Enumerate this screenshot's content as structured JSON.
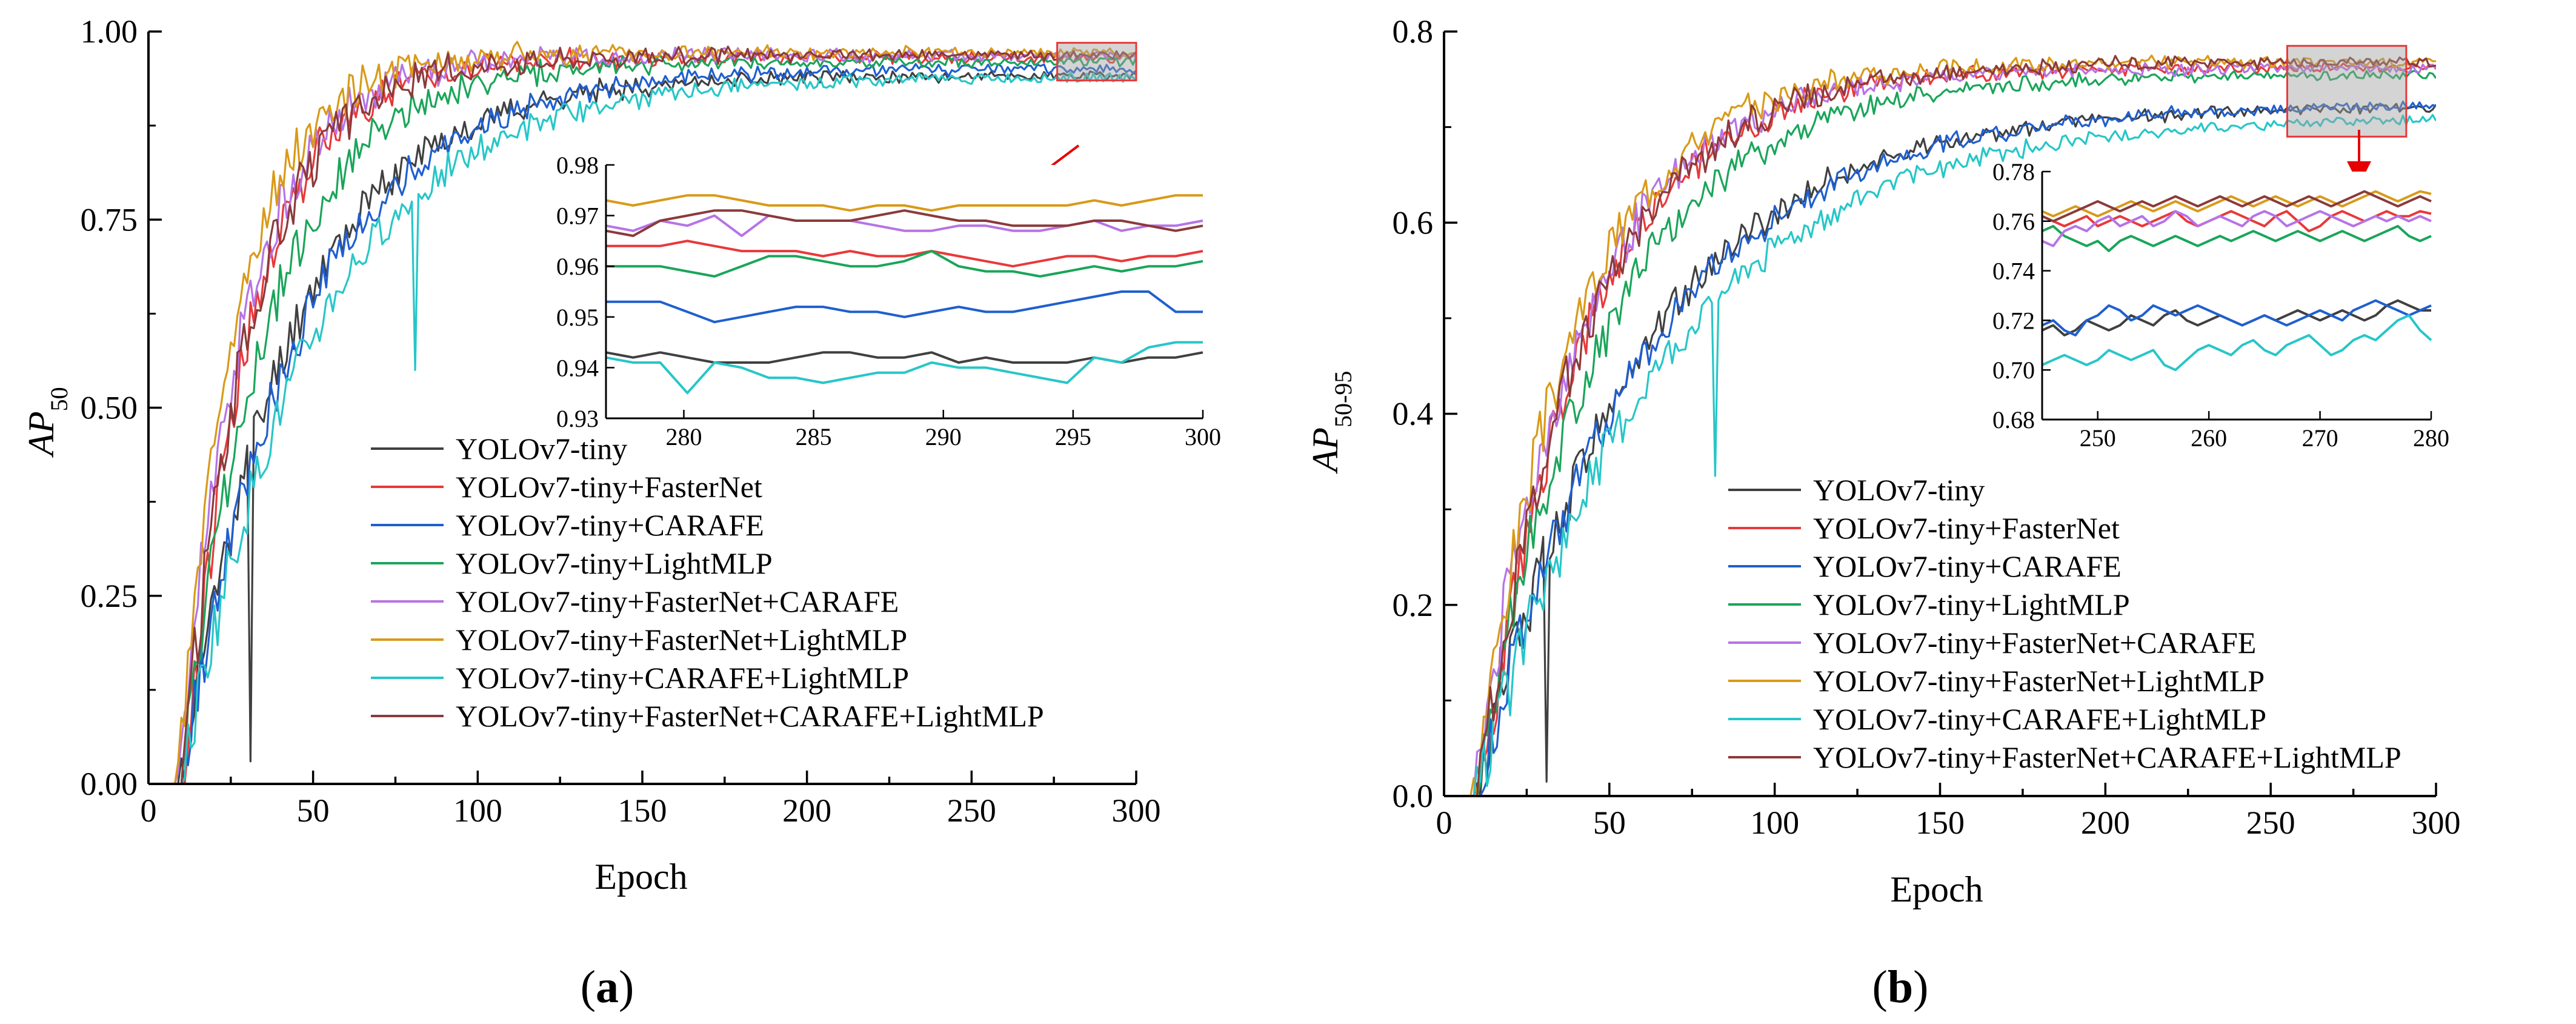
{
  "chart_data": [
    {
      "id": "a",
      "type": "line",
      "panel_label_prefix": "(",
      "panel_label": "a",
      "panel_label_suffix": ")",
      "xlabel": "Epoch",
      "ylabel": "AP",
      "ylabel_sub": "50",
      "xlim": [
        0,
        300
      ],
      "ylim": [
        0,
        1
      ],
      "xticks": [
        0,
        50,
        100,
        150,
        200,
        250,
        300
      ],
      "yticks": [
        0.0,
        0.25,
        0.5,
        0.75,
        1.0
      ],
      "ytick_labels": [
        "0.00",
        "0.25",
        "0.50",
        "0.75",
        "1.00"
      ],
      "legend_position": "lower-right",
      "zoom_region": {
        "x": [
          276,
          300
        ],
        "y": [
          0.935,
          0.985
        ]
      },
      "inset": {
        "xlim": [
          277,
          300
        ],
        "ylim": [
          0.93,
          0.98
        ],
        "xticks": [
          280,
          285,
          290,
          295,
          300
        ],
        "yticks": [
          0.93,
          0.94,
          0.95,
          0.96,
          0.97,
          0.98
        ],
        "ytick_labels": [
          "0.93",
          "0.94",
          "0.95",
          "0.96",
          "0.97",
          "0.98"
        ]
      },
      "series": [
        {
          "name": "YOLOv7-tiny",
          "color": "#404040",
          "final": 0.941,
          "start": 10,
          "tau": 33,
          "seed": 11,
          "dip": [
            31,
            0.03
          ],
          "inset_values": [
            0.943,
            0.942,
            0.943,
            0.942,
            0.941,
            0.941,
            0.941,
            0.942,
            0.943,
            0.943,
            0.942,
            0.942,
            0.943,
            0.941,
            0.942,
            0.941,
            0.941,
            0.941,
            0.942,
            0.941,
            0.942,
            0.942,
            0.943
          ]
        },
        {
          "name": "YOLOv7-tiny+FasterNet",
          "color": "#e8393a",
          "final": 0.965,
          "start": 11,
          "tau": 20,
          "seed": 22,
          "inset_values": [
            0.964,
            0.964,
            0.964,
            0.965,
            0.964,
            0.963,
            0.963,
            0.963,
            0.962,
            0.963,
            0.962,
            0.962,
            0.963,
            0.962,
            0.961,
            0.96,
            0.961,
            0.962,
            0.962,
            0.961,
            0.962,
            0.962,
            0.963
          ]
        },
        {
          "name": "YOLOv7-tiny+CARAFE",
          "color": "#1f5fcf",
          "final": 0.951,
          "start": 10,
          "tau": 36,
          "seed": 33,
          "inset_values": [
            0.953,
            0.953,
            0.953,
            0.951,
            0.949,
            0.95,
            0.951,
            0.952,
            0.952,
            0.951,
            0.951,
            0.95,
            0.951,
            0.952,
            0.951,
            0.951,
            0.952,
            0.953,
            0.954,
            0.955,
            0.955,
            0.951,
            0.951
          ]
        },
        {
          "name": "YOLOv7-tiny+LightMLP",
          "color": "#1aa55a",
          "final": 0.96,
          "start": 10,
          "tau": 26,
          "seed": 44,
          "inset_values": [
            0.96,
            0.96,
            0.96,
            0.959,
            0.958,
            0.96,
            0.962,
            0.962,
            0.961,
            0.96,
            0.96,
            0.961,
            0.963,
            0.96,
            0.959,
            0.959,
            0.958,
            0.959,
            0.96,
            0.959,
            0.96,
            0.96,
            0.961
          ]
        },
        {
          "name": "YOLOv7-tiny+FasterNet+CARAFE",
          "color": "#b673e6",
          "final": 0.968,
          "start": 9,
          "tau": 20,
          "seed": 55,
          "inset_values": [
            0.968,
            0.967,
            0.969,
            0.968,
            0.97,
            0.966,
            0.97,
            0.969,
            0.969,
            0.969,
            0.968,
            0.967,
            0.967,
            0.968,
            0.968,
            0.967,
            0.967,
            0.968,
            0.969,
            0.967,
            0.968,
            0.968,
            0.969
          ]
        },
        {
          "name": "YOLOv7-tiny+FasterNet+LightMLP",
          "color": "#d99a18",
          "final": 0.972,
          "start": 9,
          "tau": 18,
          "seed": 66,
          "inset_values": [
            0.973,
            0.972,
            0.973,
            0.974,
            0.974,
            0.973,
            0.972,
            0.972,
            0.972,
            0.971,
            0.972,
            0.972,
            0.971,
            0.972,
            0.972,
            0.972,
            0.972,
            0.972,
            0.973,
            0.972,
            0.973,
            0.974,
            0.974
          ]
        },
        {
          "name": "YOLOv7-tiny+CARAFE+LightMLP",
          "color": "#27c6c8",
          "final": 0.94,
          "start": 10,
          "tau": 40,
          "seed": 77,
          "dip": [
            81,
            0.55
          ],
          "inset_values": [
            0.942,
            0.941,
            0.941,
            0.935,
            0.941,
            0.94,
            0.938,
            0.938,
            0.937,
            0.938,
            0.939,
            0.939,
            0.941,
            0.94,
            0.94,
            0.939,
            0.938,
            0.937,
            0.942,
            0.941,
            0.944,
            0.945,
            0.945
          ]
        },
        {
          "name": "YOLOv7-tiny+FasterNet+CARAFE+LightMLP",
          "color": "#8b3a3a",
          "final": 0.968,
          "start": 10,
          "tau": 21,
          "seed": 88,
          "inset_values": [
            0.967,
            0.966,
            0.969,
            0.97,
            0.971,
            0.971,
            0.97,
            0.969,
            0.969,
            0.969,
            0.97,
            0.971,
            0.97,
            0.969,
            0.969,
            0.968,
            0.968,
            0.968,
            0.969,
            0.969,
            0.968,
            0.967,
            0.968
          ]
        }
      ]
    },
    {
      "id": "b",
      "type": "line",
      "panel_label_prefix": "(",
      "panel_label": "b",
      "panel_label_suffix": ")",
      "xlabel": "Epoch",
      "ylabel": "AP",
      "ylabel_sub": "50-95",
      "xlim": [
        0,
        300
      ],
      "ylim": [
        0,
        0.8
      ],
      "xticks": [
        0,
        50,
        100,
        150,
        200,
        250,
        300
      ],
      "yticks": [
        0.0,
        0.2,
        0.4,
        0.6,
        0.8
      ],
      "ytick_labels": [
        "0.0",
        "0.2",
        "0.4",
        "0.6",
        "0.8"
      ],
      "legend_position": "lower-right",
      "zoom_region": {
        "x": [
          255,
          291
        ],
        "y": [
          0.69,
          0.785
        ]
      },
      "inset": {
        "xlim": [
          245,
          280
        ],
        "ylim": [
          0.68,
          0.78
        ],
        "xticks": [
          250,
          260,
          270,
          280
        ],
        "yticks": [
          0.68,
          0.7,
          0.72,
          0.74,
          0.76,
          0.78
        ],
        "ytick_labels": [
          "0.68",
          "0.70",
          "0.72",
          "0.74",
          "0.76",
          "0.78"
        ]
      },
      "series": [
        {
          "name": "YOLOv7-tiny",
          "color": "#404040",
          "final": 0.722,
          "start": 10,
          "tau": 48,
          "seed": 12,
          "dip": [
            31,
            0.015
          ],
          "inset_values": [
            0.716,
            0.718,
            0.714,
            0.716,
            0.72,
            0.718,
            0.716,
            0.718,
            0.722,
            0.72,
            0.718,
            0.722,
            0.724,
            0.72,
            0.718,
            0.72,
            0.722,
            0.72,
            0.718,
            0.72,
            0.722,
            0.72,
            0.722,
            0.724,
            0.722,
            0.72,
            0.722,
            0.724,
            0.722,
            0.72,
            0.722,
            0.726,
            0.728,
            0.726,
            0.724,
            0.724
          ]
        },
        {
          "name": "YOLOv7-tiny+FasterNet",
          "color": "#e8393a",
          "final": 0.763,
          "start": 11,
          "tau": 32,
          "seed": 23,
          "inset_values": [
            0.762,
            0.76,
            0.758,
            0.76,
            0.762,
            0.758,
            0.76,
            0.762,
            0.76,
            0.758,
            0.76,
            0.762,
            0.764,
            0.76,
            0.758,
            0.76,
            0.762,
            0.764,
            0.762,
            0.76,
            0.758,
            0.762,
            0.764,
            0.76,
            0.756,
            0.758,
            0.762,
            0.764,
            0.762,
            0.76,
            0.762,
            0.764,
            0.762,
            0.762,
            0.764,
            0.763
          ]
        },
        {
          "name": "YOLOv7-tiny+CARAFE",
          "color": "#1f5fcf",
          "final": 0.725,
          "start": 10,
          "tau": 50,
          "seed": 34,
          "inset_values": [
            0.718,
            0.72,
            0.716,
            0.714,
            0.72,
            0.722,
            0.726,
            0.724,
            0.72,
            0.722,
            0.726,
            0.724,
            0.722,
            0.724,
            0.726,
            0.724,
            0.722,
            0.72,
            0.718,
            0.72,
            0.722,
            0.72,
            0.718,
            0.72,
            0.722,
            0.724,
            0.722,
            0.72,
            0.724,
            0.726,
            0.728,
            0.726,
            0.724,
            0.722,
            0.724,
            0.726
          ]
        },
        {
          "name": "YOLOv7-tiny+LightMLP",
          "color": "#1aa55a",
          "final": 0.755,
          "start": 10,
          "tau": 38,
          "seed": 45,
          "inset_values": [
            0.756,
            0.758,
            0.754,
            0.752,
            0.75,
            0.752,
            0.748,
            0.752,
            0.754,
            0.752,
            0.75,
            0.752,
            0.754,
            0.752,
            0.75,
            0.752,
            0.754,
            0.752,
            0.754,
            0.756,
            0.754,
            0.752,
            0.754,
            0.756,
            0.754,
            0.752,
            0.754,
            0.756,
            0.754,
            0.752,
            0.754,
            0.756,
            0.758,
            0.754,
            0.752,
            0.754
          ]
        },
        {
          "name": "YOLOv7-tiny+FasterNet+CARAFE",
          "color": "#b673e6",
          "final": 0.762,
          "start": 9,
          "tau": 32,
          "seed": 56,
          "inset_values": [
            0.752,
            0.75,
            0.756,
            0.758,
            0.756,
            0.76,
            0.762,
            0.758,
            0.76,
            0.762,
            0.758,
            0.76,
            0.764,
            0.762,
            0.758,
            0.76,
            0.762,
            0.76,
            0.758,
            0.762,
            0.764,
            0.762,
            0.758,
            0.76,
            0.762,
            0.764,
            0.762,
            0.76,
            0.758,
            0.76,
            0.762,
            0.76,
            0.762,
            0.76,
            0.762,
            0.76
          ]
        },
        {
          "name": "YOLOv7-tiny+FasterNet+LightMLP",
          "color": "#d99a18",
          "final": 0.768,
          "start": 9,
          "tau": 30,
          "seed": 67,
          "inset_values": [
            0.764,
            0.762,
            0.764,
            0.766,
            0.764,
            0.762,
            0.764,
            0.766,
            0.768,
            0.766,
            0.764,
            0.766,
            0.768,
            0.766,
            0.764,
            0.766,
            0.768,
            0.77,
            0.768,
            0.766,
            0.768,
            0.77,
            0.768,
            0.766,
            0.768,
            0.77,
            0.768,
            0.766,
            0.768,
            0.77,
            0.772,
            0.77,
            0.768,
            0.77,
            0.772,
            0.771
          ]
        },
        {
          "name": "YOLOv7-tiny+CARAFE+LightMLP",
          "color": "#27c6c8",
          "final": 0.712,
          "start": 10,
          "tau": 55,
          "seed": 78,
          "dip": [
            82,
            0.335
          ],
          "inset_values": [
            0.702,
            0.704,
            0.706,
            0.704,
            0.702,
            0.704,
            0.708,
            0.706,
            0.704,
            0.706,
            0.708,
            0.702,
            0.7,
            0.704,
            0.708,
            0.71,
            0.708,
            0.706,
            0.71,
            0.712,
            0.708,
            0.706,
            0.71,
            0.712,
            0.714,
            0.71,
            0.706,
            0.708,
            0.712,
            0.714,
            0.712,
            0.716,
            0.72,
            0.722,
            0.716,
            0.712
          ]
        },
        {
          "name": "YOLOv7-tiny+FasterNet+CARAFE+LightMLP",
          "color": "#8b3a3a",
          "final": 0.768,
          "start": 10,
          "tau": 33,
          "seed": 89,
          "inset_values": [
            0.762,
            0.76,
            0.762,
            0.764,
            0.766,
            0.768,
            0.766,
            0.764,
            0.766,
            0.768,
            0.766,
            0.768,
            0.77,
            0.768,
            0.766,
            0.768,
            0.77,
            0.768,
            0.766,
            0.768,
            0.77,
            0.768,
            0.766,
            0.768,
            0.77,
            0.768,
            0.766,
            0.768,
            0.77,
            0.772,
            0.77,
            0.768,
            0.766,
            0.768,
            0.77,
            0.768
          ]
        }
      ]
    }
  ]
}
